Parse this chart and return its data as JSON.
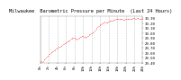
{
  "title": "Milwaukee  Barometric Pressure per Minute  (Last 24 Hours)",
  "y_min": 29.4,
  "y_max": 30.35,
  "y_ticks": [
    29.4,
    29.5,
    29.6,
    29.7,
    29.8,
    29.9,
    30.0,
    30.1,
    30.2,
    30.3
  ],
  "y_tick_labels": [
    "29.40",
    "29.50",
    "29.60",
    "29.70",
    "29.80",
    "29.90",
    "30.00",
    "30.10",
    "30.20",
    "30.30"
  ],
  "line_color": "#ff0000",
  "bg_color": "#ffffff",
  "plot_bg": "#ffffff",
  "grid_color": "#bbbbbb",
  "title_fontsize": 3.8,
  "tick_fontsize": 2.8,
  "pressure_data": [
    29.42,
    29.43,
    29.43,
    29.42,
    29.44,
    29.46,
    29.47,
    29.48,
    29.5,
    29.52,
    29.54,
    29.55,
    29.57,
    29.58,
    29.6,
    29.61,
    29.62,
    29.63,
    29.64,
    29.65,
    29.66,
    29.67,
    29.68,
    29.69,
    29.7,
    29.71,
    29.72,
    29.72,
    29.73,
    29.74,
    29.75,
    29.76,
    29.77,
    29.78,
    29.79,
    29.8,
    29.81,
    29.82,
    29.83,
    29.84,
    29.85,
    29.86,
    29.87,
    29.88,
    29.89,
    29.9,
    29.91,
    29.91,
    29.9,
    29.89,
    29.88,
    29.87,
    29.88,
    29.89,
    29.9,
    29.91,
    29.92,
    29.93,
    29.94,
    29.95,
    29.94,
    29.93,
    29.92,
    29.91,
    29.92,
    29.93,
    29.94,
    29.95,
    29.96,
    29.97,
    29.98,
    29.99,
    30.0,
    30.01,
    30.02,
    30.03,
    30.05,
    30.07,
    30.09,
    30.11,
    30.13,
    30.14,
    30.15,
    30.16,
    30.17,
    30.18,
    30.19,
    30.2,
    30.21,
    30.22,
    30.23,
    30.22,
    30.21,
    30.21,
    30.22,
    30.23,
    30.24,
    30.25,
    30.25,
    30.26,
    30.26,
    30.26,
    30.27,
    30.27,
    30.27,
    30.28,
    30.28,
    30.28,
    30.28,
    30.29,
    30.29,
    30.29,
    30.28,
    30.28,
    30.28,
    30.28,
    30.27,
    30.27,
    30.27,
    30.28,
    30.28,
    30.29,
    30.29,
    30.29,
    30.29,
    30.28,
    30.28,
    30.29,
    30.29,
    30.3,
    30.3,
    30.3,
    30.3,
    30.29,
    30.29,
    30.3,
    30.3,
    30.3,
    30.29,
    30.29,
    30.29,
    30.29,
    30.28,
    30.29
  ],
  "x_tick_positions": [
    0,
    12,
    24,
    36,
    48,
    60,
    72,
    84,
    96,
    108,
    120,
    132,
    143
  ],
  "x_tick_labels": [
    "0h",
    "2h",
    "4h",
    "6h",
    "8h",
    "10h",
    "12h",
    "14h",
    "16h",
    "18h",
    "20h",
    "22h",
    "24h"
  ]
}
